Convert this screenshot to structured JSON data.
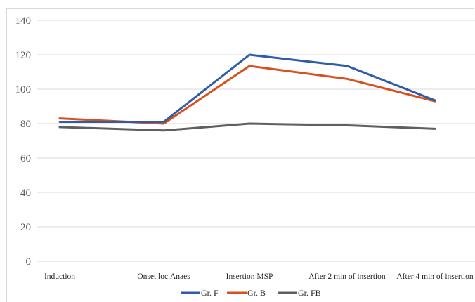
{
  "chart_data": {
    "type": "line",
    "title": "",
    "xlabel": "",
    "ylabel": "",
    "categories": [
      "Induction",
      "Onset loc.Anaes",
      "Insertion MSP",
      "After 2 min of insertion",
      "After 4 min of insertion"
    ],
    "series": [
      {
        "name": "Gr. F",
        "color": "#2e5ca8",
        "values": [
          81,
          81,
          120,
          113.5,
          93.5
        ]
      },
      {
        "name": "Gr. B",
        "color": "#d9501e",
        "values": [
          83,
          80,
          113.5,
          106,
          93
        ]
      },
      {
        "name": "Gr. FB",
        "color": "#5f5f5f",
        "values": [
          78,
          76,
          80,
          79,
          77
        ]
      }
    ],
    "ylim": [
      0,
      140
    ],
    "yticks": [
      0,
      20,
      40,
      60,
      80,
      100,
      120,
      140
    ],
    "grid": "horizontal",
    "legend": "bottom"
  }
}
